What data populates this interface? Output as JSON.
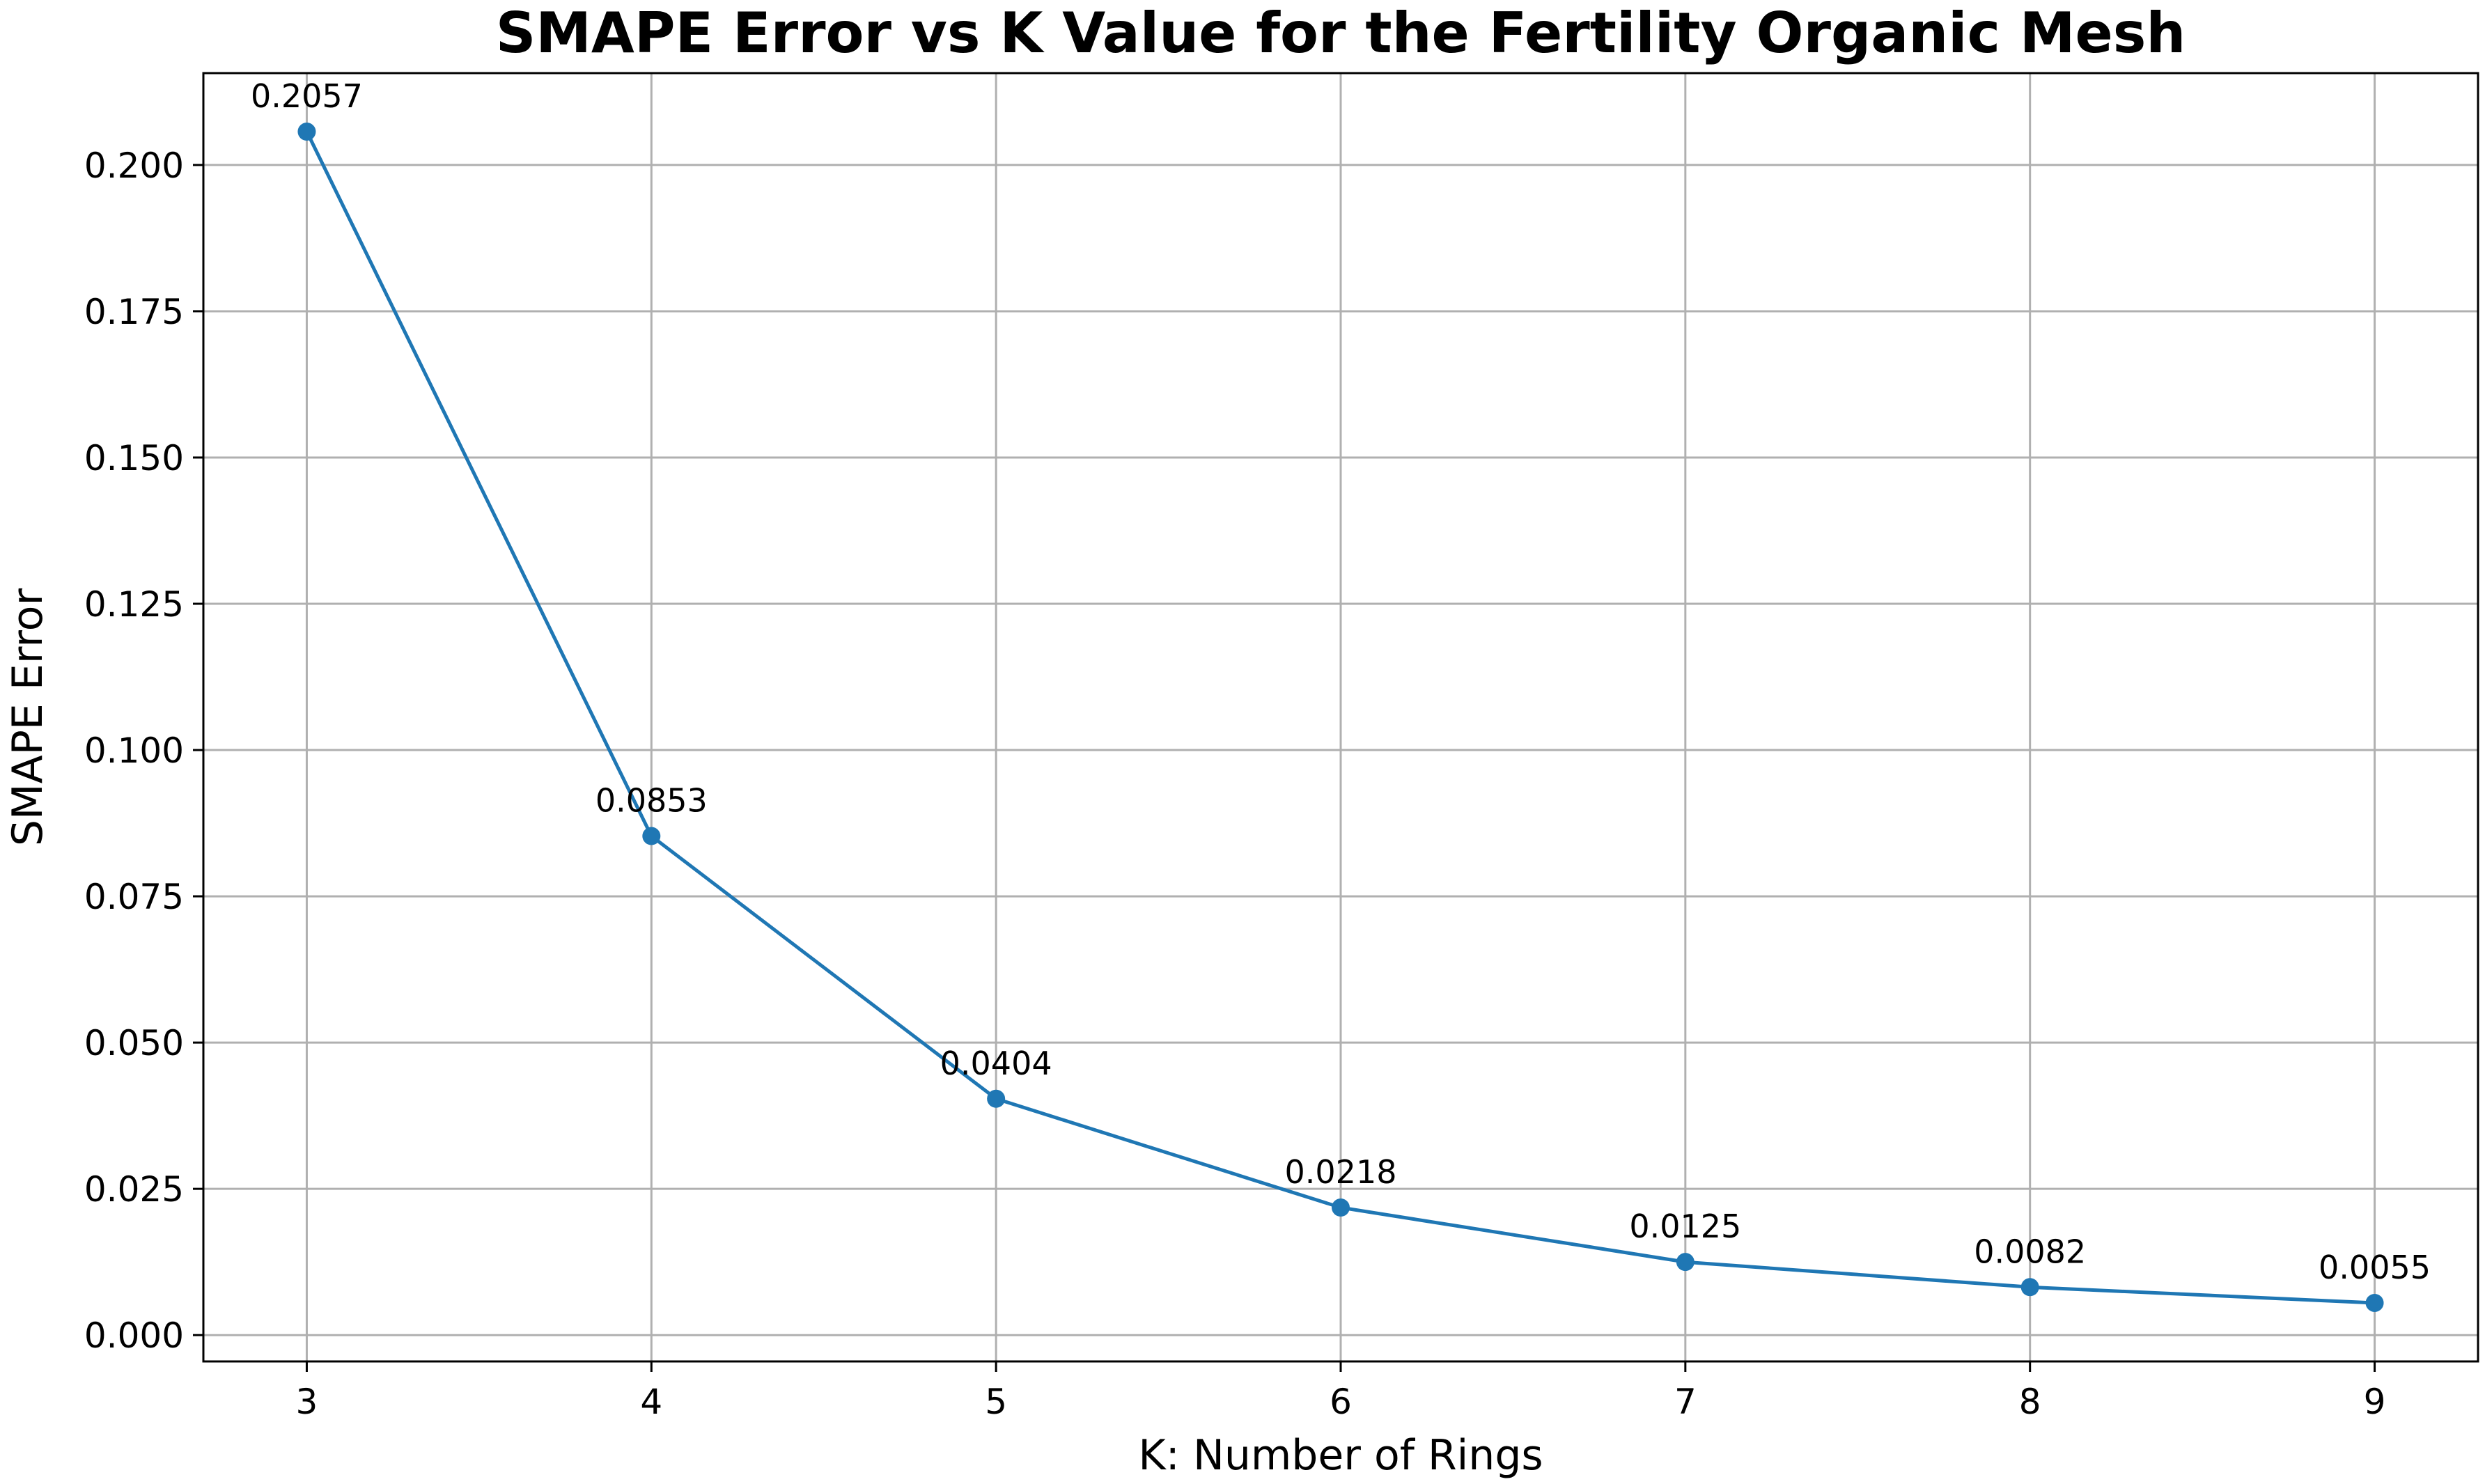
{
  "chart_data": {
    "type": "line",
    "title": "SMAPE Error vs K Value for the Fertility Organic Mesh",
    "xlabel": "K: Number of Rings",
    "ylabel": "SMAPE Error",
    "x": [
      3,
      4,
      5,
      6,
      7,
      8,
      9
    ],
    "series": [
      {
        "values": [
          0.2057,
          0.0853,
          0.0404,
          0.0218,
          0.0125,
          0.0082,
          0.0055
        ],
        "color": "#1f77b4",
        "marker": "circle"
      }
    ],
    "data_labels": [
      "0.2057",
      "0.0853",
      "0.0404",
      "0.0218",
      "0.0125",
      "0.0082",
      "0.0055"
    ],
    "x_ticks": [
      "3",
      "4",
      "5",
      "6",
      "7",
      "8",
      "9"
    ],
    "y_ticks": [
      "0.000",
      "0.025",
      "0.050",
      "0.075",
      "0.100",
      "0.125",
      "0.150",
      "0.175",
      "0.200"
    ],
    "xlim": [
      2.7,
      9.3
    ],
    "ylim": [
      -0.0045,
      0.2157
    ],
    "grid": true,
    "legend": "none"
  }
}
